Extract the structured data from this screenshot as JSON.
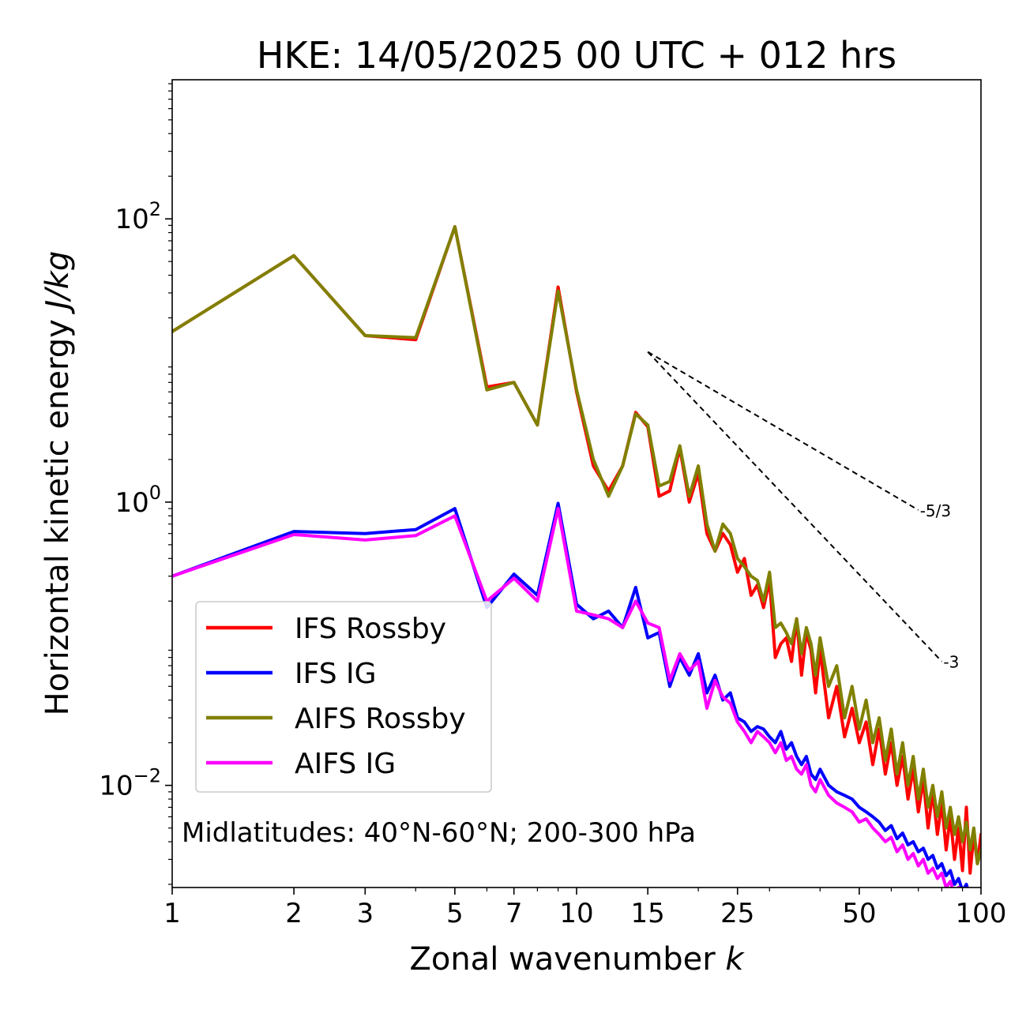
{
  "chart_data": {
    "type": "line",
    "title": "HKE: 14/05/2025 00 UTC + 012 hrs",
    "xlabel": "Zonal wavenumber",
    "xlabel_symbol": "k",
    "ylabel": "Horizontal kinetic energy",
    "ylabel_unit": "J/kg",
    "x_scale": "log",
    "y_scale": "log",
    "xlim": [
      1,
      100
    ],
    "ylim": [
      0.0019,
      960
    ],
    "x_ticks": [
      1,
      2,
      3,
      5,
      7,
      10,
      15,
      25,
      50,
      100
    ],
    "x_tick_labels": [
      "1",
      "2",
      "3",
      "5",
      "7",
      "10",
      "15",
      "25",
      "50",
      "100"
    ],
    "y_ticks": [
      0.01,
      1,
      100
    ],
    "y_tick_labels": [
      {
        "base": "10",
        "exp": "−2"
      },
      {
        "base": "10",
        "exp": "0"
      },
      {
        "base": "10",
        "exp": "2"
      }
    ],
    "grid": false,
    "legend_position": "lower-left",
    "annotation": "Midlatitudes: 40°N-60°N; 200-300 hPa",
    "reference_slopes": [
      {
        "label": "-5/3",
        "x": [
          15,
          70
        ],
        "y": [
          11.5,
          0.88
        ]
      },
      {
        "label": "-3",
        "x": [
          15,
          80
        ],
        "y": [
          11.5,
          0.075
        ]
      }
    ],
    "series": [
      {
        "name": "IFS Rossby",
        "color": "#ff0000",
        "x": [
          1,
          2,
          3,
          4,
          5,
          6,
          7,
          8,
          9,
          10,
          11,
          12,
          13,
          14,
          15,
          16,
          17,
          18,
          19,
          20,
          21,
          22,
          23,
          24,
          25,
          26,
          27,
          28,
          29,
          30,
          31,
          32,
          33,
          34,
          35,
          36,
          37,
          38,
          39,
          40,
          42,
          44,
          46,
          48,
          50,
          52,
          54,
          56,
          58,
          60,
          62,
          64,
          66,
          68,
          70,
          72,
          74,
          76,
          78,
          80,
          82,
          84,
          86,
          88,
          90,
          92,
          94,
          96,
          98,
          100
        ],
        "y": [
          16,
          55,
          15,
          14,
          88,
          6.5,
          7,
          3.5,
          33,
          6,
          1.8,
          1.2,
          1.8,
          4.3,
          3.4,
          1.1,
          1.2,
          2.4,
          1.0,
          1.6,
          0.6,
          0.45,
          0.6,
          0.5,
          0.32,
          0.4,
          0.22,
          0.26,
          0.18,
          0.28,
          0.08,
          0.1,
          0.11,
          0.075,
          0.15,
          0.06,
          0.12,
          0.09,
          0.045,
          0.09,
          0.03,
          0.05,
          0.022,
          0.035,
          0.02,
          0.028,
          0.014,
          0.025,
          0.012,
          0.02,
          0.01,
          0.016,
          0.008,
          0.013,
          0.0065,
          0.011,
          0.005,
          0.009,
          0.0045,
          0.0075,
          0.0035,
          0.006,
          0.003,
          0.005,
          0.0025,
          0.007,
          0.0024,
          0.0045,
          0.0028,
          0.0045
        ]
      },
      {
        "name": "IFS IG",
        "color": "#0000ff",
        "x": [
          1,
          2,
          3,
          4,
          5,
          6,
          7,
          8,
          9,
          10,
          11,
          12,
          13,
          14,
          15,
          16,
          17,
          18,
          19,
          20,
          21,
          22,
          23,
          24,
          25,
          26,
          27,
          28,
          29,
          30,
          31,
          32,
          33,
          34,
          35,
          36,
          37,
          38,
          39,
          40,
          42,
          44,
          46,
          48,
          50,
          52,
          54,
          56,
          58,
          60,
          62,
          64,
          66,
          68,
          70,
          72,
          74,
          76,
          78,
          80,
          82,
          84,
          86,
          88,
          90,
          92,
          94,
          96,
          98,
          100
        ],
        "y": [
          0.3,
          0.62,
          0.6,
          0.64,
          0.9,
          0.18,
          0.31,
          0.22,
          0.98,
          0.19,
          0.15,
          0.17,
          0.13,
          0.25,
          0.11,
          0.12,
          0.05,
          0.08,
          0.06,
          0.085,
          0.045,
          0.06,
          0.04,
          0.045,
          0.03,
          0.028,
          0.024,
          0.026,
          0.025,
          0.022,
          0.02,
          0.024,
          0.018,
          0.02,
          0.016,
          0.014,
          0.016,
          0.012,
          0.011,
          0.013,
          0.01,
          0.009,
          0.0085,
          0.008,
          0.007,
          0.0065,
          0.006,
          0.0055,
          0.0048,
          0.0052,
          0.0042,
          0.0046,
          0.0038,
          0.004,
          0.0034,
          0.0036,
          0.003,
          0.0032,
          0.0026,
          0.0028,
          0.0023,
          0.0025,
          0.002,
          0.0022,
          0.0018,
          0.002,
          0.0016,
          0.0018,
          0.0015,
          0.0017
        ]
      },
      {
        "name": "AIFS Rossby",
        "color": "#808000",
        "x": [
          1,
          2,
          3,
          4,
          5,
          6,
          7,
          8,
          9,
          10,
          11,
          12,
          13,
          14,
          15,
          16,
          17,
          18,
          19,
          20,
          21,
          22,
          23,
          24,
          25,
          26,
          27,
          28,
          29,
          30,
          31,
          32,
          33,
          34,
          35,
          36,
          37,
          38,
          39,
          40,
          42,
          44,
          46,
          48,
          50,
          52,
          54,
          56,
          58,
          60,
          62,
          64,
          66,
          68,
          70,
          72,
          74,
          76,
          78,
          80,
          82,
          84,
          86,
          88,
          90,
          92,
          94,
          96,
          98,
          100
        ],
        "y": [
          16,
          55,
          15,
          14.5,
          88,
          6.2,
          7,
          3.5,
          31,
          6.2,
          2.0,
          1.1,
          1.8,
          4.2,
          3.5,
          1.3,
          1.4,
          2.5,
          1.1,
          1.8,
          0.7,
          0.45,
          0.7,
          0.6,
          0.4,
          0.35,
          0.3,
          0.28,
          0.2,
          0.32,
          0.13,
          0.14,
          0.12,
          0.1,
          0.15,
          0.085,
          0.13,
          0.1,
          0.06,
          0.11,
          0.05,
          0.07,
          0.03,
          0.05,
          0.025,
          0.04,
          0.02,
          0.03,
          0.015,
          0.025,
          0.012,
          0.02,
          0.01,
          0.016,
          0.008,
          0.013,
          0.007,
          0.01,
          0.006,
          0.009,
          0.005,
          0.007,
          0.0045,
          0.006,
          0.004,
          0.0055,
          0.0035,
          0.005,
          0.0028,
          0.0035
        ]
      },
      {
        "name": "AIFS IG",
        "color": "#ff00ff",
        "x": [
          1,
          2,
          3,
          4,
          5,
          6,
          7,
          8,
          9,
          10,
          11,
          12,
          13,
          14,
          15,
          16,
          17,
          18,
          19,
          20,
          21,
          22,
          23,
          24,
          25,
          26,
          27,
          28,
          29,
          30,
          31,
          32,
          33,
          34,
          35,
          36,
          37,
          38,
          39,
          40,
          42,
          44,
          46,
          48,
          50,
          52,
          54,
          56,
          58,
          60,
          62,
          64,
          66,
          68,
          70,
          72,
          74,
          76,
          78,
          80,
          82,
          84,
          86,
          88,
          90,
          92,
          94,
          96,
          98,
          100
        ],
        "y": [
          0.3,
          0.59,
          0.54,
          0.58,
          0.8,
          0.2,
          0.29,
          0.2,
          0.9,
          0.17,
          0.16,
          0.15,
          0.13,
          0.2,
          0.14,
          0.13,
          0.055,
          0.085,
          0.065,
          0.075,
          0.035,
          0.055,
          0.042,
          0.038,
          0.028,
          0.024,
          0.02,
          0.024,
          0.022,
          0.02,
          0.017,
          0.02,
          0.015,
          0.016,
          0.013,
          0.012,
          0.014,
          0.01,
          0.009,
          0.011,
          0.0085,
          0.0075,
          0.007,
          0.0065,
          0.0055,
          0.0058,
          0.005,
          0.0045,
          0.004,
          0.0043,
          0.0034,
          0.0038,
          0.003,
          0.0033,
          0.0027,
          0.003,
          0.0024,
          0.0026,
          0.0022,
          0.0024,
          0.0019,
          0.0021,
          0.0017,
          0.0019,
          0.0015,
          0.0017,
          0.0014,
          0.0016,
          0.0013,
          0.0015
        ]
      }
    ]
  }
}
